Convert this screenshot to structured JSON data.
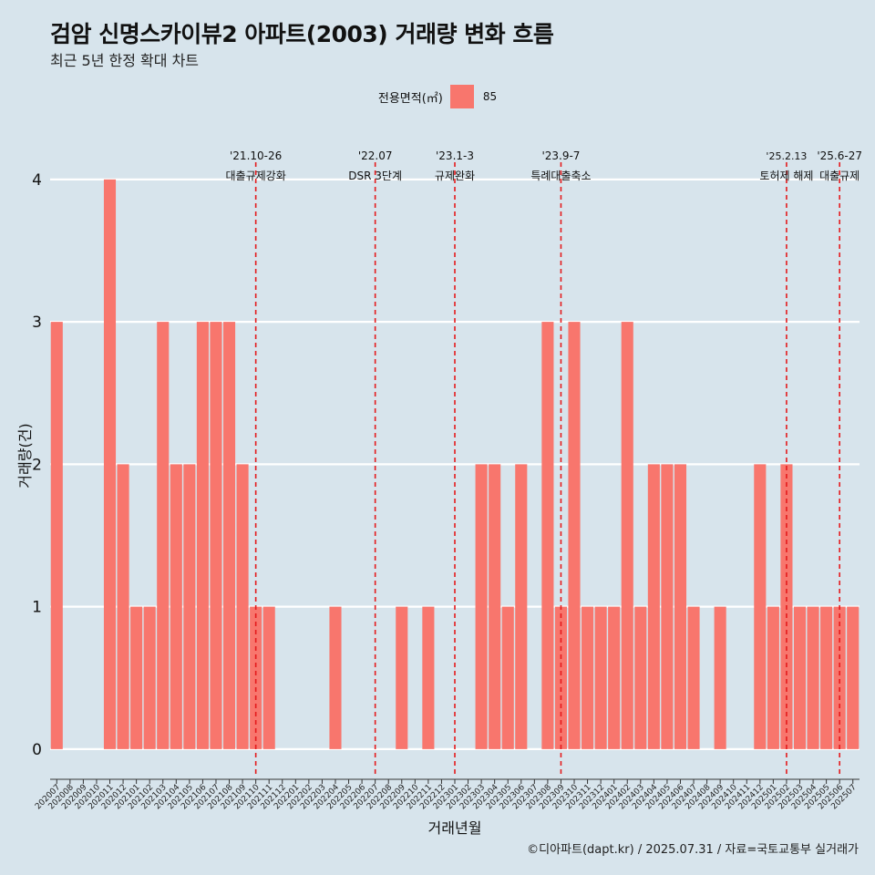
{
  "title": "검암 신명스카이뷰2 아파트(2003) 거래량 변화 흐름",
  "subtitle": "최근 5년 한정 확대 차트",
  "caption": "©디아파트(dapt.kr) / 2025.07.31 / 자료=국토교통부 실거래가",
  "colors": {
    "background": "#d7e4ec",
    "bar": "#f8766d",
    "grid": "#ffffff",
    "event_line": "#e41a1c"
  },
  "chart_data": {
    "type": "bar",
    "title": "검암 신명스카이뷰2 아파트(2003) 거래량 변화 흐름",
    "subtitle": "최근 5년 한정 확대 차트",
    "xlabel": "거래년월",
    "ylabel": "거래량(건)",
    "ylim": [
      0,
      4
    ],
    "y_ticks": [
      0,
      1,
      2,
      3,
      4
    ],
    "grid": true,
    "legend_position": "top",
    "legend_title": "전용면적(㎡)",
    "series": [
      {
        "name": "85",
        "color": "#f8766d",
        "values": [
          3,
          0,
          0,
          0,
          4,
          2,
          1,
          1,
          3,
          2,
          2,
          3,
          3,
          3,
          2,
          1,
          1,
          0,
          0,
          0,
          0,
          1,
          0,
          0,
          0,
          0,
          1,
          0,
          1,
          0,
          0,
          0,
          2,
          2,
          1,
          2,
          0,
          3,
          1,
          3,
          1,
          1,
          1,
          3,
          1,
          2,
          2,
          2,
          1,
          0,
          1,
          0,
          0,
          2,
          1,
          2,
          1,
          1,
          1,
          1,
          1
        ]
      }
    ],
    "categories": [
      "202007",
      "202008",
      "202009",
      "202010",
      "202011",
      "202012",
      "202101",
      "202102",
      "202103",
      "202104",
      "202105",
      "202106",
      "202107",
      "202108",
      "202109",
      "202110",
      "202111",
      "202112",
      "202201",
      "202202",
      "202203",
      "202204",
      "202205",
      "202206",
      "202207",
      "202208",
      "202209",
      "202210",
      "202211",
      "202212",
      "202301",
      "202302",
      "202303",
      "202304",
      "202305",
      "202306",
      "202307",
      "202308",
      "202309",
      "202310",
      "202311",
      "202312",
      "202401",
      "202402",
      "202403",
      "202404",
      "202405",
      "202406",
      "202407",
      "202408",
      "202409",
      "202410",
      "202411",
      "202412",
      "202501",
      "202502",
      "202503",
      "202504",
      "202505",
      "202506",
      "202507"
    ],
    "annotations": [
      {
        "x": "202110",
        "line1": "'21.10-26",
        "line2": "대출규제강화"
      },
      {
        "x": "202207",
        "line1": "'22.07",
        "line2": "DSR 3단계"
      },
      {
        "x": "202301",
        "line1": "'23.1-3",
        "line2": "규제완화"
      },
      {
        "x": "202309",
        "line1": "'23.9-7",
        "line2": "특례대출축소"
      },
      {
        "x": "202502",
        "line1": "'25.2.13",
        "line2": "토허제 해제"
      },
      {
        "x": "202506",
        "line1": "'25.6-27",
        "line2": "대출규제"
      }
    ]
  }
}
